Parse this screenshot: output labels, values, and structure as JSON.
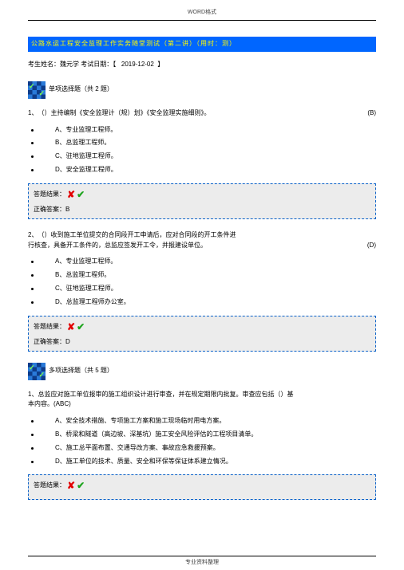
{
  "header_tag": "WORD格式",
  "title_bar": "公路水运工程安全监理工作实务随堂测试（第二讲）（用时：测）",
  "meta": {
    "name_label": "考生姓名：魏元学",
    "date_label": "考试日期：",
    "date_value": "2019-12-02"
  },
  "section1": {
    "label": "单项选择题（共 2 题）"
  },
  "q1": {
    "num": "1、",
    "text": "（）主持编制《安全监理计（规）划》《安全监理实施细则》。",
    "mark": "(B)",
    "opts": {
      "A": "A、专业监理工程师。",
      "B": "B、总监理工程师。",
      "C": "C、驻地监理工程师。",
      "D": "D、安全监理工程师。"
    },
    "res_label": "答题结果：",
    "correct_label": "正确答案：B"
  },
  "q2": {
    "num": "2、",
    "text1": "（）收到施工单位提交的合同段开工申请后，应对合同段的开工条件进",
    "text2": "行核查，具备开工条件的，总监应签发开工令，并报建设单位。",
    "mark": "(D)",
    "opts": {
      "A": "A、专业监理工程师。",
      "B": "B、总监理工程师。",
      "C": "C、驻地监理工程师。",
      "D": "D、总监理工程师办公室。"
    },
    "res_label": "答题结果：",
    "correct_label": "正确答案：D"
  },
  "section2": {
    "label": "多项选择题（共 5 题）"
  },
  "q3": {
    "num": "1、",
    "text1": "总监应对施工单位报审的施工组织设计进行审查，并在规定期限内批复。审查应包括（）基",
    "text2": "本内容。(ABC)",
    "opts": {
      "A": "A、安全技术措施、专项施工方案和施工现场临时用电方案。",
      "B": "B、桥梁和隧道（高边坡、深基坑）施工安全风险评估的工程项目清单。",
      "C": "C、施工总平面布置、交通导改方案、事故应急救援预案。",
      "D": "D、施工单位的技术、质量、安全和环保等保证体系建立情况。"
    },
    "res_label": "答题结果："
  },
  "footer": "专业资料整理"
}
